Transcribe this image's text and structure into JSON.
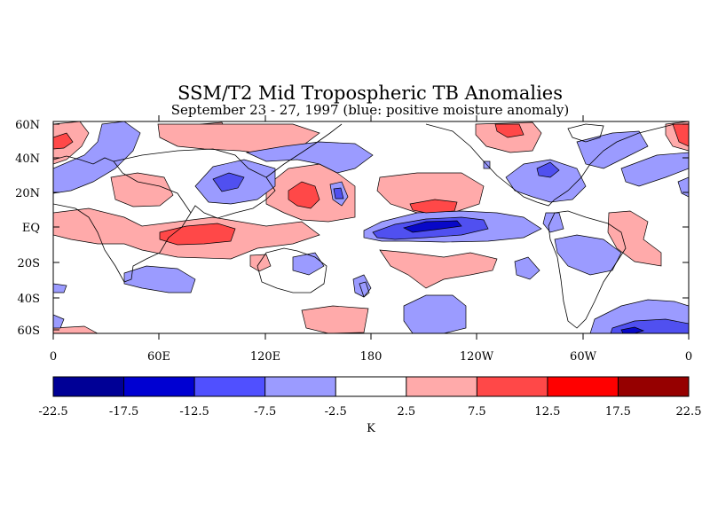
{
  "figure": {
    "title": "SSM/T2 Mid Tropospheric TB Anomalies",
    "subtitle": "September 23 - 27, 1997 (blue: positive moisture anomaly)"
  },
  "map": {
    "lat_labels": [
      "60N",
      "40N",
      "20N",
      "EQ",
      "20S",
      "40S",
      "60S"
    ],
    "lon_labels": [
      "0",
      "60E",
      "120E",
      "180",
      "120W",
      "60W",
      "0"
    ],
    "lat_range": [
      -60,
      60
    ],
    "lon_range": [
      0,
      360
    ],
    "colors": {
      "light_blue": "#9b9bff",
      "medium_blue": "#5050f0",
      "dark_blue": "#0808c8",
      "light_red": "#ffaaaa",
      "medium_red": "#ff4848",
      "coast": "#000000"
    }
  },
  "colorbar": {
    "unit": "K",
    "tick_labels": [
      "-22.5",
      "-17.5",
      "-12.5",
      "-7.5",
      "-2.5",
      "2.5",
      "7.5",
      "12.5",
      "17.5",
      "22.5"
    ],
    "colors": [
      "#000096",
      "#0000d2",
      "#5050ff",
      "#9b9bff",
      "#ffffff",
      "#ffaaaa",
      "#ff4848",
      "#ff0000",
      "#960000"
    ]
  }
}
